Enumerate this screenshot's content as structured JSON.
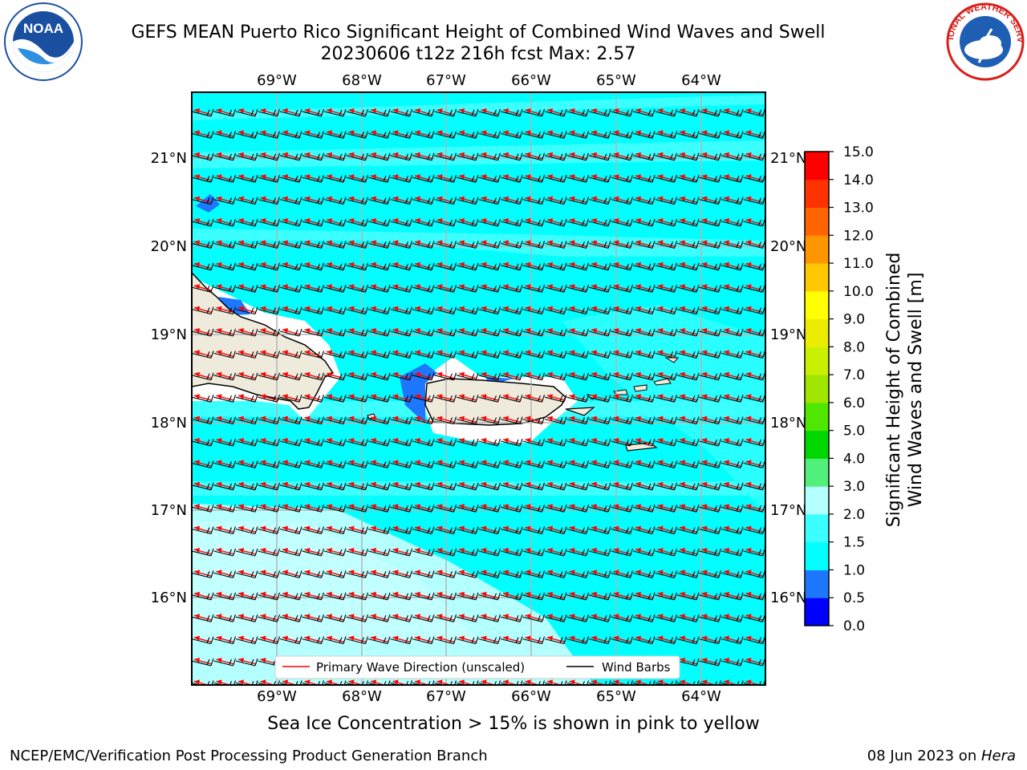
{
  "title_line1": "GEFS MEAN Puerto Rico Significant Height of Combined Wind Waves and Swell",
  "title_line2": "20230606 t12z 216h fcst   Max: 2.57",
  "logos": {
    "left": "noaa-logo",
    "left_text": "NOAA",
    "right": "nws-logo",
    "right_text": "NATIONAL WEATHER SERVICE"
  },
  "lon_labels": [
    "69°W",
    "68°W",
    "67°W",
    "66°W",
    "65°W",
    "64°W"
  ],
  "lat_labels": [
    "21°N",
    "20°N",
    "19°N",
    "18°N",
    "17°N",
    "16°N"
  ],
  "legend": {
    "primary_wave": "Primary Wave Direction (unscaled)",
    "wind_barbs": "Wind Barbs"
  },
  "colorbar": {
    "label_line1": "Significant Height of Combined",
    "label_line2": "Wind Waves and Swell [m]",
    "ticks": [
      "0.0",
      "0.5",
      "1.0",
      "1.5",
      "2.0",
      "3.0",
      "4.0",
      "5.0",
      "6.0",
      "7.0",
      "8.0",
      "9.0",
      "10.0",
      "11.0",
      "12.0",
      "13.0",
      "14.0",
      "15.0"
    ],
    "colors": [
      "#0000ff",
      "#1e78ff",
      "#00ffff",
      "#3cffff",
      "#b4ffff",
      "#50f07a",
      "#00d600",
      "#50e600",
      "#a0e600",
      "#c8f000",
      "#ecec00",
      "#ffff00",
      "#ffc800",
      "#ff9600",
      "#ff6400",
      "#ff3200",
      "#ff0000"
    ]
  },
  "field_colors": {
    "ocean": "#00ffff",
    "swell_light": "#3cffff",
    "swell_pale": "#b4ffff",
    "calm": "#1e78ff",
    "land": "#efebdc",
    "coast_halo": "#ffffff",
    "arrow": "#ff0000",
    "barb": "#000000"
  },
  "caption": "Sea Ice Concentration > 15% is shown in pink to yellow",
  "footer_left": "NCEP/EMC/Verification Post Processing Product Generation Branch",
  "footer_right_prefix": "08 Jun 2023 on ",
  "footer_right_host": "Hera"
}
